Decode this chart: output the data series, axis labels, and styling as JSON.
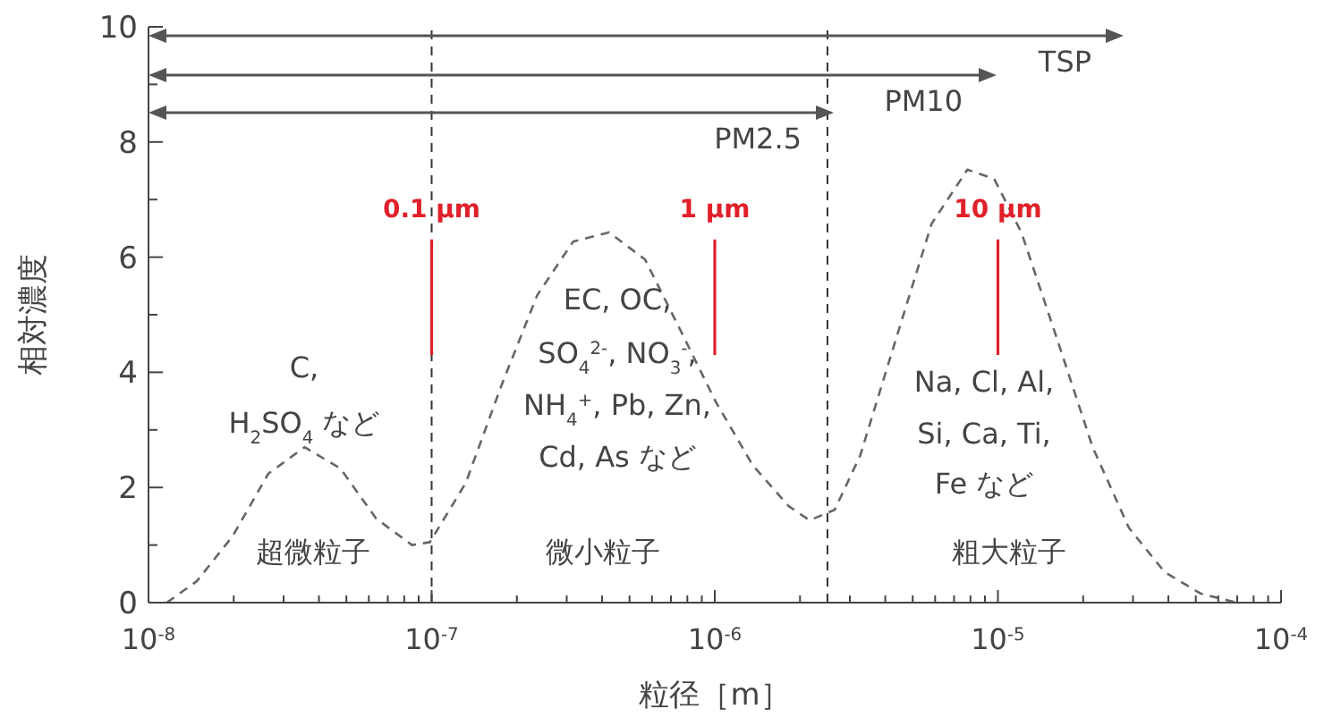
{
  "chart_data": {
    "type": "line",
    "xlabel": "粒径［m］",
    "ylabel": "相対濃度",
    "log": "x",
    "marker": "none",
    "xlim": [
      1e-08,
      0.0001
    ],
    "ylim": [
      0,
      10
    ],
    "xticks": [
      {
        "value": 1e-08,
        "label": "10$^{-8}$"
      },
      {
        "value": 2e-08,
        "label": null
      },
      {
        "value": 3e-08,
        "label": null
      },
      {
        "value": 4e-08,
        "label": null
      },
      {
        "value": 5e-08,
        "label": null
      },
      {
        "value": 6e-08,
        "label": null
      },
      {
        "value": 7e-08,
        "label": null
      },
      {
        "value": 8e-08,
        "label": null
      },
      {
        "value": 9e-08,
        "label": null
      },
      {
        "value": 1e-07,
        "label": "10$^{-7}$"
      },
      {
        "value": 2e-07,
        "label": null
      },
      {
        "value": 3e-07,
        "label": null
      },
      {
        "value": 4e-07,
        "label": null
      },
      {
        "value": 5e-07,
        "label": null
      },
      {
        "value": 6e-07,
        "label": null
      },
      {
        "value": 7e-07,
        "label": null
      },
      {
        "value": 8e-07,
        "label": null
      },
      {
        "value": 9e-07,
        "label": null
      },
      {
        "value": 1e-06,
        "label": "10$^{-6}$"
      },
      {
        "value": 2e-06,
        "label": null
      },
      {
        "value": 3e-06,
        "label": null
      },
      {
        "value": 4e-06,
        "label": null
      },
      {
        "value": 5e-06,
        "label": null
      },
      {
        "value": 6e-06,
        "label": null
      },
      {
        "value": 7e-06,
        "label": null
      },
      {
        "value": 8e-06,
        "label": null
      },
      {
        "value": 9e-06,
        "label": null
      },
      {
        "value": 1e-05,
        "label": "10$^{-5}$"
      },
      {
        "value": 2e-05,
        "label": null
      },
      {
        "value": 3e-05,
        "label": null
      },
      {
        "value": 4e-05,
        "label": null
      },
      {
        "value": 5e-05,
        "label": null
      },
      {
        "value": 6e-05,
        "label": null
      },
      {
        "value": 7e-05,
        "label": null
      },
      {
        "value": 8e-05,
        "label": null
      },
      {
        "value": 9e-05,
        "label": null
      },
      {
        "value": 0.0001,
        "label": "10$^{-4}$"
      }
    ],
    "yticks": [
      0,
      {
        "value": 1,
        "label": null
      },
      2,
      {
        "value": 3,
        "label": null
      },
      4,
      {
        "value": 5,
        "label": null
      },
      6,
      {
        "value": 7,
        "label": null
      },
      8,
      {
        "value": 9,
        "label": null
      },
      10
    ],
    "series": [
      {
        "color": "#666666",
        "line_style": "dashed",
        "x": [
          1.16e-08,
          1.48e-08,
          1.98e-08,
          2.65e-08,
          3.56e-08,
          4.76e-08,
          6.37e-08,
          8.52e-08,
          9.86e-08,
          1.32e-07,
          1.77e-07,
          2.36e-07,
          3.16e-07,
          4.23e-07,
          5.67e-07,
          7.58e-07,
          1.01e-06,
          1.36e-06,
          1.82e-06,
          2.16e-06,
          2.65e-06,
          3.26e-06,
          4.36e-06,
          5.83e-06,
          7.8e-06,
          9.7e-06,
          1.21e-05,
          1.62e-05,
          2.16e-05,
          2.9e-05,
          3.88e-05,
          5.19e-05,
          6.95e-05
        ],
        "values": [
          0,
          0.37,
          1.15,
          2.24,
          2.7,
          2.33,
          1.46,
          1.0,
          1.05,
          2.08,
          3.79,
          5.34,
          6.27,
          6.43,
          5.96,
          4.72,
          3.48,
          2.39,
          1.68,
          1.43,
          1.61,
          2.55,
          4.57,
          6.58,
          7.52,
          7.36,
          6.43,
          4.57,
          2.7,
          1.3,
          0.53,
          0.16,
          0
        ]
      }
    ],
    "ref_lines": [
      {
        "axis": "x",
        "value": 1e-07,
        "label": "0.1 µm",
        "color": "#e0202a",
        "line_style": "solid"
      },
      {
        "axis": "x",
        "value": 1e-06,
        "label": "1 µm",
        "color": "#e0202a",
        "line_style": "solid"
      },
      {
        "axis": "x",
        "value": 1e-05,
        "label": "10 µm",
        "color": "#e0202a",
        "line_style": "solid"
      },
      {
        "axis": "x",
        "value": 1e-07,
        "color": "#333333",
        "line_style": "dashed"
      },
      {
        "axis": "x",
        "value": 2.5e-06,
        "color": "#333333",
        "line_style": "dashed"
      }
    ],
    "annotations": [
      "TSP",
      "PM10",
      "PM2.5",
      "C,",
      "H$_{2}$SO$_{4}$ など",
      "超微粒子",
      "EC, OC,",
      "SO$_{4}$$^{2-}$, NO$_{3}$$^{-}$,",
      "NH$_{4}$$^{+}$, Pb, Zn,",
      "Cd, As など",
      "微小粒子",
      "Na, Cl, Al,",
      "Si, Ca, Ti,",
      "Fe など",
      "粗大粒子"
    ]
  }
}
